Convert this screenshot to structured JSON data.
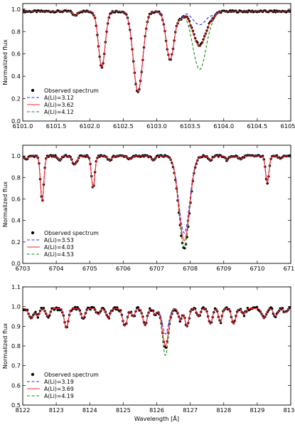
{
  "chart_data": [
    {
      "type": "line",
      "xlabel": "",
      "ylabel": "Normalized flux",
      "xlim": [
        6101.0,
        6105.0
      ],
      "ylim": [
        0.0,
        1.05
      ],
      "xticks": [
        "6101.0",
        "6101.5",
        "6102.0",
        "6102.5",
        "6103.0",
        "6103.5",
        "6104.0",
        "6104.5",
        "6105.0"
      ],
      "yticks": [
        "0.0",
        "0.2",
        "0.4",
        "0.6",
        "0.8",
        "1.0"
      ],
      "legend_position": "lower-left",
      "observed": {
        "name": "Observed spectrum",
        "color": "#000000"
      },
      "series": [
        {
          "name": "A(Li)=3.12",
          "color": "#2a2aff",
          "style": "dashed",
          "values": []
        },
        {
          "name": "A(Li)=3.62",
          "color": "#ff2020",
          "style": "solid",
          "values": []
        },
        {
          "name": "A(Li)=4.12",
          "color": "#1a8a1a",
          "style": "dashed",
          "values": []
        }
      ],
      "continuum": 0.98,
      "lines": [
        {
          "center": 6101.78,
          "depth": 0.04,
          "width": 0.03
        },
        {
          "center": 6102.18,
          "depth": 0.5,
          "width": 0.05
        },
        {
          "center": 6102.72,
          "depth": 0.72,
          "width": 0.07
        },
        {
          "center": 6103.2,
          "depth": 0.43,
          "width": 0.06
        },
        {
          "center": 6103.36,
          "depth": 0.05,
          "width": 0.04
        },
        {
          "center": 6103.85,
          "depth": 0.02,
          "width": 0.04
        }
      ],
      "li_feature": {
        "center": 6103.64,
        "width": 0.1,
        "depths": [
          0.12,
          0.31,
          0.52
        ]
      },
      "observed_li_depth": 0.3
    },
    {
      "type": "line",
      "xlabel": "",
      "ylabel": "Normalized flux",
      "xlim": [
        6703,
        6711
      ],
      "ylim": [
        0.0,
        1.1
      ],
      "xticks": [
        "6703",
        "6704",
        "6705",
        "6706",
        "6707",
        "6708",
        "6709",
        "6710",
        "6711"
      ],
      "yticks": [
        "0.0",
        "0.2",
        "0.4",
        "0.6",
        "0.8",
        "1.0"
      ],
      "legend_position": "lower-left",
      "observed": {
        "name": "Observed spectrum",
        "color": "#000000"
      },
      "series": [
        {
          "name": "A(Li)=3.53",
          "color": "#2a2aff",
          "style": "dashed",
          "values": []
        },
        {
          "name": "A(Li)=4.03",
          "color": "#ff2020",
          "style": "solid",
          "values": []
        },
        {
          "name": "A(Li)=4.53",
          "color": "#1a8a1a",
          "style": "dashed",
          "values": []
        }
      ],
      "continuum": 1.0,
      "lines": [
        {
          "center": 6703.1,
          "depth": 0.03,
          "width": 0.06
        },
        {
          "center": 6703.58,
          "depth": 0.42,
          "width": 0.05
        },
        {
          "center": 6704.1,
          "depth": 0.04,
          "width": 0.05
        },
        {
          "center": 6704.55,
          "depth": 0.08,
          "width": 0.07
        },
        {
          "center": 6705.1,
          "depth": 0.3,
          "width": 0.05
        },
        {
          "center": 6705.6,
          "depth": 0.04,
          "width": 0.06
        },
        {
          "center": 6706.2,
          "depth": 0.03,
          "width": 0.06
        },
        {
          "center": 6706.9,
          "depth": 0.04,
          "width": 0.06
        },
        {
          "center": 6708.6,
          "depth": 0.04,
          "width": 0.05
        },
        {
          "center": 6709.1,
          "depth": 0.04,
          "width": 0.05
        },
        {
          "center": 6709.5,
          "depth": 0.03,
          "width": 0.06
        },
        {
          "center": 6710.3,
          "depth": 0.25,
          "width": 0.05
        },
        {
          "center": 6710.7,
          "depth": 0.03,
          "width": 0.05
        }
      ],
      "li_feature": {
        "center": 6707.82,
        "width": 0.16,
        "depths": [
          0.72,
          0.79,
          0.85
        ]
      },
      "observed_li_depth": 0.86
    },
    {
      "type": "line",
      "xlabel": "Wavelength [Å]",
      "ylabel": "Normalized flux",
      "xlim": [
        8122,
        8130
      ],
      "ylim": [
        0.5,
        1.1
      ],
      "xticks": [
        "8122",
        "8123",
        "8124",
        "8125",
        "8126",
        "8127",
        "8128",
        "8129",
        "8130"
      ],
      "yticks": [
        "0.5",
        "0.6",
        "0.7",
        "0.8",
        "0.9",
        "1.0",
        "1.1"
      ],
      "legend_position": "lower-left",
      "observed": {
        "name": "Observed spectrum",
        "color": "#000000"
      },
      "series": [
        {
          "name": "A(Li)=3.19",
          "color": "#2a2aff",
          "style": "dashed",
          "values": []
        },
        {
          "name": "A(Li)=3.69",
          "color": "#ff2020",
          "style": "solid",
          "values": []
        },
        {
          "name": "A(Li)=4.19",
          "color": "#1a8a1a",
          "style": "dashed",
          "values": []
        }
      ],
      "continuum": 0.99,
      "lines": [
        {
          "center": 8122.25,
          "depth": 0.05,
          "width": 0.07
        },
        {
          "center": 8122.45,
          "depth": 0.04,
          "width": 0.05
        },
        {
          "center": 8122.75,
          "depth": 0.04,
          "width": 0.06
        },
        {
          "center": 8123.3,
          "depth": 0.1,
          "width": 0.06
        },
        {
          "center": 8123.8,
          "depth": 0.05,
          "width": 0.06
        },
        {
          "center": 8124.25,
          "depth": 0.03,
          "width": 0.05
        },
        {
          "center": 8124.55,
          "depth": 0.05,
          "width": 0.06
        },
        {
          "center": 8125.05,
          "depth": 0.09,
          "width": 0.07
        },
        {
          "center": 8125.3,
          "depth": 0.04,
          "width": 0.05
        },
        {
          "center": 8125.65,
          "depth": 0.09,
          "width": 0.06
        },
        {
          "center": 8125.95,
          "depth": 0.03,
          "width": 0.05
        },
        {
          "center": 8126.7,
          "depth": 0.06,
          "width": 0.05
        },
        {
          "center": 8126.9,
          "depth": 0.09,
          "width": 0.06
        },
        {
          "center": 8127.25,
          "depth": 0.04,
          "width": 0.05
        },
        {
          "center": 8127.6,
          "depth": 0.08,
          "width": 0.06
        },
        {
          "center": 8127.9,
          "depth": 0.07,
          "width": 0.05
        },
        {
          "center": 8128.3,
          "depth": 0.08,
          "width": 0.06
        },
        {
          "center": 8128.6,
          "depth": 0.03,
          "width": 0.05
        },
        {
          "center": 8129.2,
          "depth": 0.05,
          "width": 0.06
        },
        {
          "center": 8129.55,
          "depth": 0.04,
          "width": 0.06
        },
        {
          "center": 8129.85,
          "depth": 0.02,
          "width": 0.05
        }
      ],
      "li_feature": {
        "center": 8126.26,
        "width": 0.09,
        "depths": [
          0.13,
          0.19,
          0.24
        ]
      },
      "observed_li_depth": 0.2
    }
  ]
}
